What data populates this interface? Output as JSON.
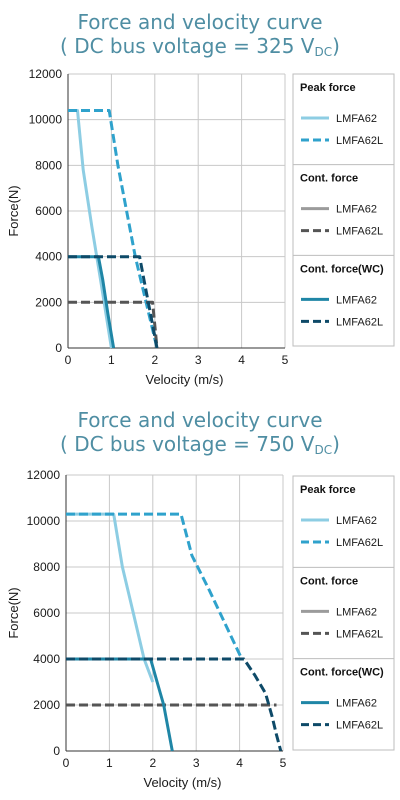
{
  "chart_data": [
    {
      "type": "line",
      "title_main": "Force and velocity curve",
      "title_sub_prefix": "( DC bus voltage = 325 V",
      "title_sub_unit": "DC",
      "title_sub_suffix": ")",
      "xlabel": "Velocity (m/s)",
      "ylabel": "Force(N)",
      "xlim": [
        0,
        5
      ],
      "ylim": [
        0,
        12000
      ],
      "x_ticks": [
        "0",
        "1",
        "2",
        "3",
        "4",
        "5"
      ],
      "y_ticks": [
        "0",
        "2000",
        "4000",
        "6000",
        "8000",
        "10000",
        "12000"
      ],
      "grid": true,
      "legend_position": "right",
      "legend_groups": [
        {
          "heading": "Peak force",
          "items": [
            "LMFA62",
            "LMFA62L"
          ]
        },
        {
          "heading": "Cont. force",
          "items": [
            "LMFA62",
            "LMFA62L"
          ]
        },
        {
          "heading": "Cont. force(WC)",
          "items": [
            "LMFA62",
            "LMFA62L"
          ]
        }
      ],
      "series": [
        {
          "group": 0,
          "name": "LMFA62",
          "color": "#8dcde3",
          "dash": "solid",
          "points": [
            [
              0,
              10400
            ],
            [
              0.22,
              10400
            ],
            [
              0.35,
              7800
            ],
            [
              0.55,
              5300
            ],
            [
              0.75,
              3000
            ],
            [
              1.0,
              0
            ]
          ]
        },
        {
          "group": 0,
          "name": "LMFA62L",
          "color": "#2fa2cc",
          "dash": "dashed",
          "points": [
            [
              0,
              10400
            ],
            [
              0.95,
              10400
            ],
            [
              1.15,
              8000
            ],
            [
              1.35,
              6000
            ],
            [
              1.55,
              4000
            ],
            [
              1.8,
              2000
            ],
            [
              2.05,
              0
            ]
          ]
        },
        {
          "group": 1,
          "name": "LMFA62",
          "color": "#9b9b9b",
          "dash": "solid",
          "points": []
        },
        {
          "group": 1,
          "name": "LMFA62L",
          "color": "#555555",
          "dash": "dashed",
          "points": [
            [
              0,
              2000
            ],
            [
              1.95,
              2000
            ],
            [
              2.05,
              0
            ]
          ]
        },
        {
          "group": 2,
          "name": "LMFA62",
          "color": "#1f86a6",
          "dash": "solid",
          "points": [
            [
              0,
              4000
            ],
            [
              0.7,
              4000
            ],
            [
              0.8,
              3000
            ],
            [
              0.92,
              1500
            ],
            [
              1.05,
              0
            ]
          ]
        },
        {
          "group": 2,
          "name": "LMFA62L",
          "color": "#0e4a68",
          "dash": "dashed",
          "points": [
            [
              0,
              4000
            ],
            [
              1.65,
              4000
            ],
            [
              1.75,
              3000
            ],
            [
              1.9,
              1500
            ],
            [
              2.05,
              0
            ]
          ]
        }
      ]
    },
    {
      "type": "line",
      "title_main": "Force and velocity curve",
      "title_sub_prefix": "( DC bus voltage = 750 V",
      "title_sub_unit": "DC",
      "title_sub_suffix": ")",
      "xlabel": "Velocity (m/s)",
      "ylabel": "Force(N)",
      "xlim": [
        0,
        5
      ],
      "ylim": [
        0,
        12000
      ],
      "x_ticks": [
        "0",
        "1",
        "2",
        "3",
        "4",
        "5"
      ],
      "y_ticks": [
        "0",
        "2000",
        "4000",
        "6000",
        "8000",
        "10000",
        "12000"
      ],
      "grid": true,
      "legend_position": "right",
      "legend_groups": [
        {
          "heading": "Peak force",
          "items": [
            "LMFA62",
            "LMFA62L"
          ]
        },
        {
          "heading": "Cont. force",
          "items": [
            "LMFA62",
            "LMFA62L"
          ]
        },
        {
          "heading": "Cont. force(WC)",
          "items": [
            "LMFA62",
            "LMFA62L"
          ]
        }
      ],
      "series": [
        {
          "group": 0,
          "name": "LMFA62",
          "color": "#8dcde3",
          "dash": "solid",
          "points": [
            [
              0,
              10300
            ],
            [
              1.1,
              10300
            ],
            [
              1.3,
              8000
            ],
            [
              1.55,
              6000
            ],
            [
              1.8,
              4000
            ],
            [
              2.0,
              3000
            ]
          ]
        },
        {
          "group": 0,
          "name": "LMFA62L",
          "color": "#2fa2cc",
          "dash": "dashed",
          "points": [
            [
              0,
              10300
            ],
            [
              2.65,
              10300
            ],
            [
              2.9,
              8500
            ],
            [
              3.3,
              7000
            ],
            [
              3.65,
              5600
            ],
            [
              4.05,
              4000
            ]
          ]
        },
        {
          "group": 1,
          "name": "LMFA62",
          "color": "#9b9b9b",
          "dash": "solid",
          "points": []
        },
        {
          "group": 1,
          "name": "LMFA62L",
          "color": "#555555",
          "dash": "dashed",
          "points": [
            [
              0,
              2000
            ],
            [
              4.85,
              2000
            ]
          ]
        },
        {
          "group": 2,
          "name": "LMFA62",
          "color": "#1f86a6",
          "dash": "solid",
          "points": [
            [
              0,
              4000
            ],
            [
              1.95,
              4000
            ],
            [
              2.1,
              3000
            ],
            [
              2.25,
              2000
            ],
            [
              2.35,
              1000
            ],
            [
              2.45,
              0
            ]
          ]
        },
        {
          "group": 2,
          "name": "LMFA62L",
          "color": "#0e4a68",
          "dash": "dashed",
          "points": [
            [
              0,
              4000
            ],
            [
              4.1,
              4000
            ],
            [
              4.35,
              3300
            ],
            [
              4.6,
              2500
            ],
            [
              4.75,
              1500
            ],
            [
              4.85,
              700
            ],
            [
              4.95,
              0
            ]
          ]
        }
      ]
    }
  ]
}
